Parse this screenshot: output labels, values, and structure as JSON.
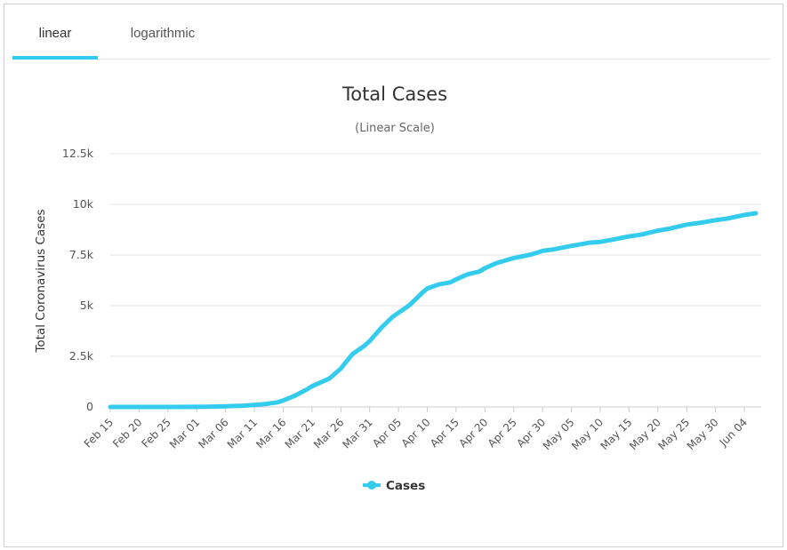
{
  "tabs": [
    {
      "label": "linear",
      "active": true
    },
    {
      "label": "logarithmic",
      "active": false
    }
  ],
  "colors": {
    "accent": "#33ccee",
    "series": "#33ccee",
    "grid": "#e6e6e6"
  },
  "chart_data": {
    "type": "line",
    "title": "Total Cases",
    "subtitle": "(Linear Scale)",
    "ylabel": "Total Coronavirus Cases",
    "xlabel": "",
    "ylim": [
      0,
      12500
    ],
    "yticks": [
      0,
      2500,
      5000,
      7500,
      10000,
      12500
    ],
    "ytick_labels": [
      "0",
      "2.5k",
      "5k",
      "7.5k",
      "10k",
      "12.5k"
    ],
    "xtick_labels": [
      "Feb 15",
      "Feb 20",
      "Feb 25",
      "Mar 01",
      "Mar 06",
      "Mar 11",
      "Mar 16",
      "Mar 21",
      "Mar 26",
      "Mar 31",
      "Apr 05",
      "Apr 10",
      "Apr 15",
      "Apr 20",
      "Apr 25",
      "Apr 30",
      "May 05",
      "May 10",
      "May 15",
      "May 20",
      "May 25",
      "May 30",
      "Jun 04"
    ],
    "legend": {
      "position": "bottom-center"
    },
    "grid": true,
    "series": [
      {
        "name": "Cases",
        "x": [
          "Feb 15",
          "Feb 20",
          "Feb 25",
          "Mar 01",
          "Mar 03",
          "Mar 06",
          "Mar 09",
          "Mar 11",
          "Mar 13",
          "Mar 15",
          "Mar 16",
          "Mar 18",
          "Mar 20",
          "Mar 21",
          "Mar 22",
          "Mar 24",
          "Mar 26",
          "Mar 28",
          "Mar 30",
          "Mar 31",
          "Apr 02",
          "Apr 04",
          "Apr 05",
          "Apr 07",
          "Apr 09",
          "Apr 10",
          "Apr 12",
          "Apr 14",
          "Apr 15",
          "Apr 17",
          "Apr 19",
          "Apr 20",
          "Apr 22",
          "Apr 25",
          "Apr 28",
          "Apr 30",
          "May 02",
          "May 05",
          "May 08",
          "May 10",
          "May 12",
          "May 15",
          "May 17",
          "May 20",
          "May 22",
          "May 25",
          "May 28",
          "May 30",
          "Jun 01",
          "Jun 04",
          "Jun 06"
        ],
        "values": [
          0,
          0,
          0,
          5,
          10,
          30,
          60,
          100,
          150,
          230,
          320,
          550,
          850,
          1020,
          1150,
          1400,
          1900,
          2600,
          3000,
          3250,
          3900,
          4450,
          4650,
          5050,
          5600,
          5850,
          6050,
          6150,
          6300,
          6550,
          6680,
          6850,
          7100,
          7350,
          7520,
          7700,
          7780,
          7950,
          8100,
          8150,
          8250,
          8420,
          8500,
          8700,
          8800,
          9000,
          9120,
          9220,
          9300,
          9480,
          9560
        ]
      }
    ]
  }
}
